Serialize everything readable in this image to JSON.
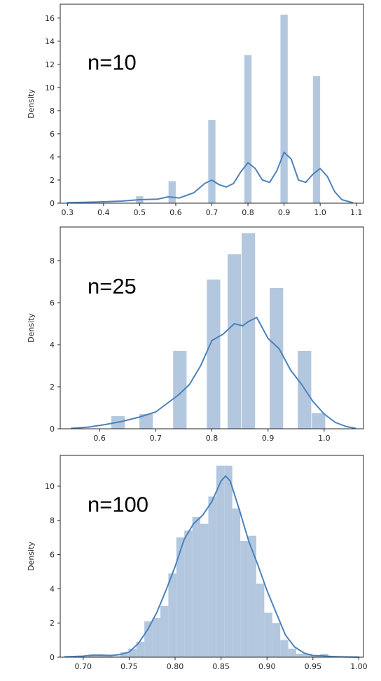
{
  "chart_data": [
    {
      "type": "bar",
      "subtype": "histogram_with_kde",
      "annotation": "n=10",
      "ylabel": "Density",
      "xlim": [
        0.28,
        1.12
      ],
      "ylim": [
        0,
        17.2
      ],
      "xticks": [
        0.3,
        0.4,
        0.5,
        0.6,
        0.7,
        0.8,
        0.9,
        1.0,
        1.1
      ],
      "xtick_labels": [
        "0.3",
        "0.4",
        "0.5",
        "0.6",
        "0.7",
        "0.8",
        "0.9",
        "1.0",
        "1.1"
      ],
      "yticks": [
        0,
        2,
        4,
        6,
        8,
        10,
        12,
        14,
        16
      ],
      "ytick_labels": [
        "0",
        "2",
        "4",
        "6",
        "8",
        "10",
        "12",
        "14",
        "16"
      ],
      "bin_width": 0.02,
      "bins": [
        {
          "x": 0.5,
          "density": 0.6
        },
        {
          "x": 0.59,
          "density": 1.9
        },
        {
          "x": 0.7,
          "density": 7.2
        },
        {
          "x": 0.8,
          "density": 12.8
        },
        {
          "x": 0.9,
          "density": 16.3
        },
        {
          "x": 0.99,
          "density": 11.0
        }
      ],
      "kde": {
        "x": [
          0.3,
          0.35,
          0.4,
          0.45,
          0.5,
          0.55,
          0.58,
          0.61,
          0.65,
          0.68,
          0.7,
          0.72,
          0.74,
          0.76,
          0.78,
          0.8,
          0.82,
          0.84,
          0.86,
          0.88,
          0.9,
          0.92,
          0.94,
          0.96,
          0.98,
          1.0,
          1.02,
          1.04,
          1.06,
          1.09
        ],
        "y": [
          0.05,
          0.08,
          0.12,
          0.18,
          0.3,
          0.35,
          0.55,
          0.45,
          0.9,
          1.7,
          2.0,
          1.6,
          1.4,
          1.7,
          2.7,
          3.5,
          3.0,
          2.0,
          1.8,
          2.8,
          4.4,
          3.8,
          2.0,
          1.8,
          2.5,
          3.0,
          2.3,
          1.0,
          0.3,
          0.05
        ]
      }
    },
    {
      "type": "bar",
      "subtype": "histogram_with_kde",
      "annotation": "n=25",
      "ylabel": "Density",
      "xlim": [
        0.53,
        1.07
      ],
      "ylim": [
        0,
        9.6
      ],
      "xticks": [
        0.6,
        0.7,
        0.8,
        0.9,
        1.0
      ],
      "xtick_labels": [
        "0.6",
        "0.7",
        "0.8",
        "0.9",
        "1.0"
      ],
      "yticks": [
        0,
        2,
        4,
        6,
        8
      ],
      "ytick_labels": [
        "0",
        "2",
        "4",
        "6",
        "8"
      ],
      "bin_width": 0.024,
      "bins": [
        {
          "x": 0.633,
          "density": 0.6
        },
        {
          "x": 0.683,
          "density": 0.7
        },
        {
          "x": 0.743,
          "density": 3.7
        },
        {
          "x": 0.803,
          "density": 7.1
        },
        {
          "x": 0.84,
          "density": 8.3
        },
        {
          "x": 0.865,
          "density": 9.3
        },
        {
          "x": 0.915,
          "density": 6.7
        },
        {
          "x": 0.965,
          "density": 3.7
        },
        {
          "x": 0.99,
          "density": 0.75
        }
      ],
      "kde": {
        "x": [
          0.55,
          0.58,
          0.61,
          0.64,
          0.67,
          0.7,
          0.72,
          0.74,
          0.76,
          0.78,
          0.8,
          0.82,
          0.84,
          0.855,
          0.865,
          0.88,
          0.9,
          0.92,
          0.94,
          0.96,
          0.98,
          1.0,
          1.02,
          1.04,
          1.055
        ],
        "y": [
          0.02,
          0.08,
          0.2,
          0.35,
          0.55,
          0.8,
          1.2,
          1.6,
          2.1,
          3.0,
          4.2,
          4.5,
          5.0,
          4.9,
          5.1,
          5.3,
          4.3,
          3.8,
          2.8,
          2.1,
          1.3,
          0.7,
          0.3,
          0.1,
          0.03
        ]
      }
    },
    {
      "type": "bar",
      "subtype": "histogram_with_kde",
      "annotation": "n=100",
      "ylabel": "Density",
      "xlim": [
        0.675,
        1.005
      ],
      "ylim": [
        0,
        11.8
      ],
      "xticks": [
        0.7,
        0.75,
        0.8,
        0.85,
        0.9,
        0.95,
        1.0
      ],
      "xtick_labels": [
        "0.70",
        "0.75",
        "0.80",
        "0.85",
        "0.90",
        "0.95",
        "1.00"
      ],
      "yticks": [
        0,
        2,
        4,
        6,
        8,
        10
      ],
      "ytick_labels": [
        "0",
        "2",
        "4",
        "6",
        "8",
        "10"
      ],
      "bin_width": 0.0087,
      "bins": [
        {
          "x": 0.71,
          "density": 0.15
        },
        {
          "x": 0.7187,
          "density": 0.15
        },
        {
          "x": 0.7274,
          "density": 0.15
        },
        {
          "x": 0.7361,
          "density": 0.05
        },
        {
          "x": 0.7448,
          "density": 0.3
        },
        {
          "x": 0.7535,
          "density": 0.5
        },
        {
          "x": 0.7622,
          "density": 0.9
        },
        {
          "x": 0.7709,
          "density": 2.1
        },
        {
          "x": 0.7796,
          "density": 2.3
        },
        {
          "x": 0.7883,
          "density": 3.0
        },
        {
          "x": 0.797,
          "density": 4.9
        },
        {
          "x": 0.8057,
          "density": 7.0
        },
        {
          "x": 0.8144,
          "density": 7.4
        },
        {
          "x": 0.8231,
          "density": 8.2
        },
        {
          "x": 0.8318,
          "density": 7.8
        },
        {
          "x": 0.8405,
          "density": 9.4
        },
        {
          "x": 0.8492,
          "density": 11.2
        },
        {
          "x": 0.8579,
          "density": 11.2
        },
        {
          "x": 0.8666,
          "density": 8.7
        },
        {
          "x": 0.8753,
          "density": 6.8
        },
        {
          "x": 0.884,
          "density": 7.1
        },
        {
          "x": 0.8927,
          "density": 4.3
        },
        {
          "x": 0.9014,
          "density": 2.6
        },
        {
          "x": 0.9101,
          "density": 2.0
        },
        {
          "x": 0.9188,
          "density": 1.0
        },
        {
          "x": 0.9275,
          "density": 0.5
        },
        {
          "x": 0.9362,
          "density": 0.2
        },
        {
          "x": 0.9449,
          "density": 0.2
        },
        {
          "x": 0.9536,
          "density": 0.05
        },
        {
          "x": 0.9623,
          "density": 0.2
        }
      ],
      "kde": {
        "x": [
          0.68,
          0.7,
          0.71,
          0.72,
          0.73,
          0.74,
          0.75,
          0.76,
          0.77,
          0.78,
          0.79,
          0.8,
          0.81,
          0.82,
          0.83,
          0.84,
          0.85,
          0.855,
          0.86,
          0.87,
          0.88,
          0.89,
          0.9,
          0.91,
          0.92,
          0.93,
          0.94,
          0.95,
          0.96,
          0.97,
          0.98,
          1.0
        ],
        "y": [
          0.02,
          0.06,
          0.12,
          0.12,
          0.1,
          0.15,
          0.3,
          0.8,
          1.6,
          2.6,
          3.9,
          5.3,
          6.9,
          7.8,
          8.3,
          9.1,
          10.3,
          10.6,
          10.3,
          8.6,
          6.8,
          5.4,
          3.9,
          2.6,
          1.3,
          0.6,
          0.25,
          0.1,
          0.08,
          0.04,
          0.02,
          0.0
        ]
      }
    }
  ],
  "colors": {
    "bar": "#B3C8DF",
    "kde": "#4C82BB",
    "axis": "#262626",
    "text": "#000000"
  }
}
